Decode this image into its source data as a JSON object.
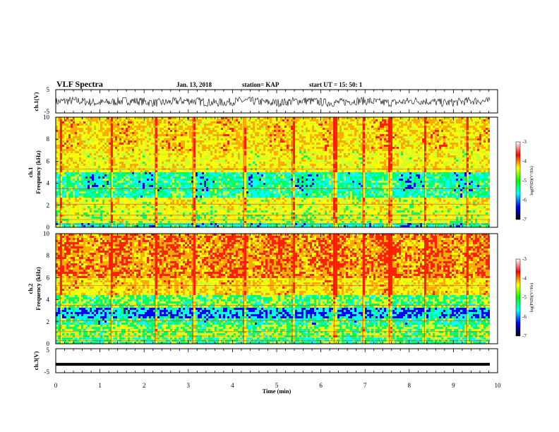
{
  "header": {
    "title": "VLF Spectra",
    "date": "Jan. 13, 2018",
    "station": "station= KAP",
    "start": "start  UT =   15: 50: 1"
  },
  "chart_data": [
    {
      "type": "line",
      "name": "ch1-waveform",
      "ylabel": "ch.1(V)",
      "ylim": [
        -5,
        5
      ],
      "yticks": [
        "5",
        "-5"
      ],
      "xlim": [
        0,
        10
      ]
    },
    {
      "type": "heatmap",
      "name": "ch1-spectrogram",
      "ylabel": "ch.1\nFrequency (kHz)",
      "ylim": [
        0,
        10
      ],
      "yticks": [
        "0",
        "2",
        "4",
        "6",
        "8",
        "10"
      ],
      "colorbar": {
        "label": "log(PSD)(V²/Hz)",
        "ticks": [
          "-3",
          "-4",
          "-5",
          "-6",
          "-7"
        ],
        "range": [
          -7,
          -3
        ]
      }
    },
    {
      "type": "heatmap",
      "name": "ch2-spectrogram",
      "ylabel": "ch.2\nFrequency (kHz)",
      "ylim": [
        0,
        10
      ],
      "yticks": [
        "0",
        "2",
        "4",
        "6",
        "8",
        "10"
      ],
      "colorbar": {
        "label": "log(PSD)(V²/Hz)",
        "ticks": [
          "-3",
          "-4",
          "-5",
          "-6",
          "-7"
        ],
        "range": [
          -7,
          -3
        ]
      }
    },
    {
      "type": "line",
      "name": "ch3-waveform",
      "ylabel": "ch.3(V)",
      "ylim": [
        -5,
        5
      ],
      "yticks": [
        "5",
        "-5"
      ],
      "flat_value": -1.5
    }
  ],
  "xaxis": {
    "label": "Time (min)",
    "range": [
      0,
      10
    ],
    "ticks": [
      "0",
      "1",
      "2",
      "3",
      "4",
      "5",
      "6",
      "7",
      "8",
      "9",
      "10"
    ]
  },
  "colors": {
    "waveform": "#000000",
    "colormap": [
      "#000000",
      "#0000ff",
      "#00ffff",
      "#00ff00",
      "#ffff00",
      "#ff0000",
      "#ffffff"
    ]
  }
}
